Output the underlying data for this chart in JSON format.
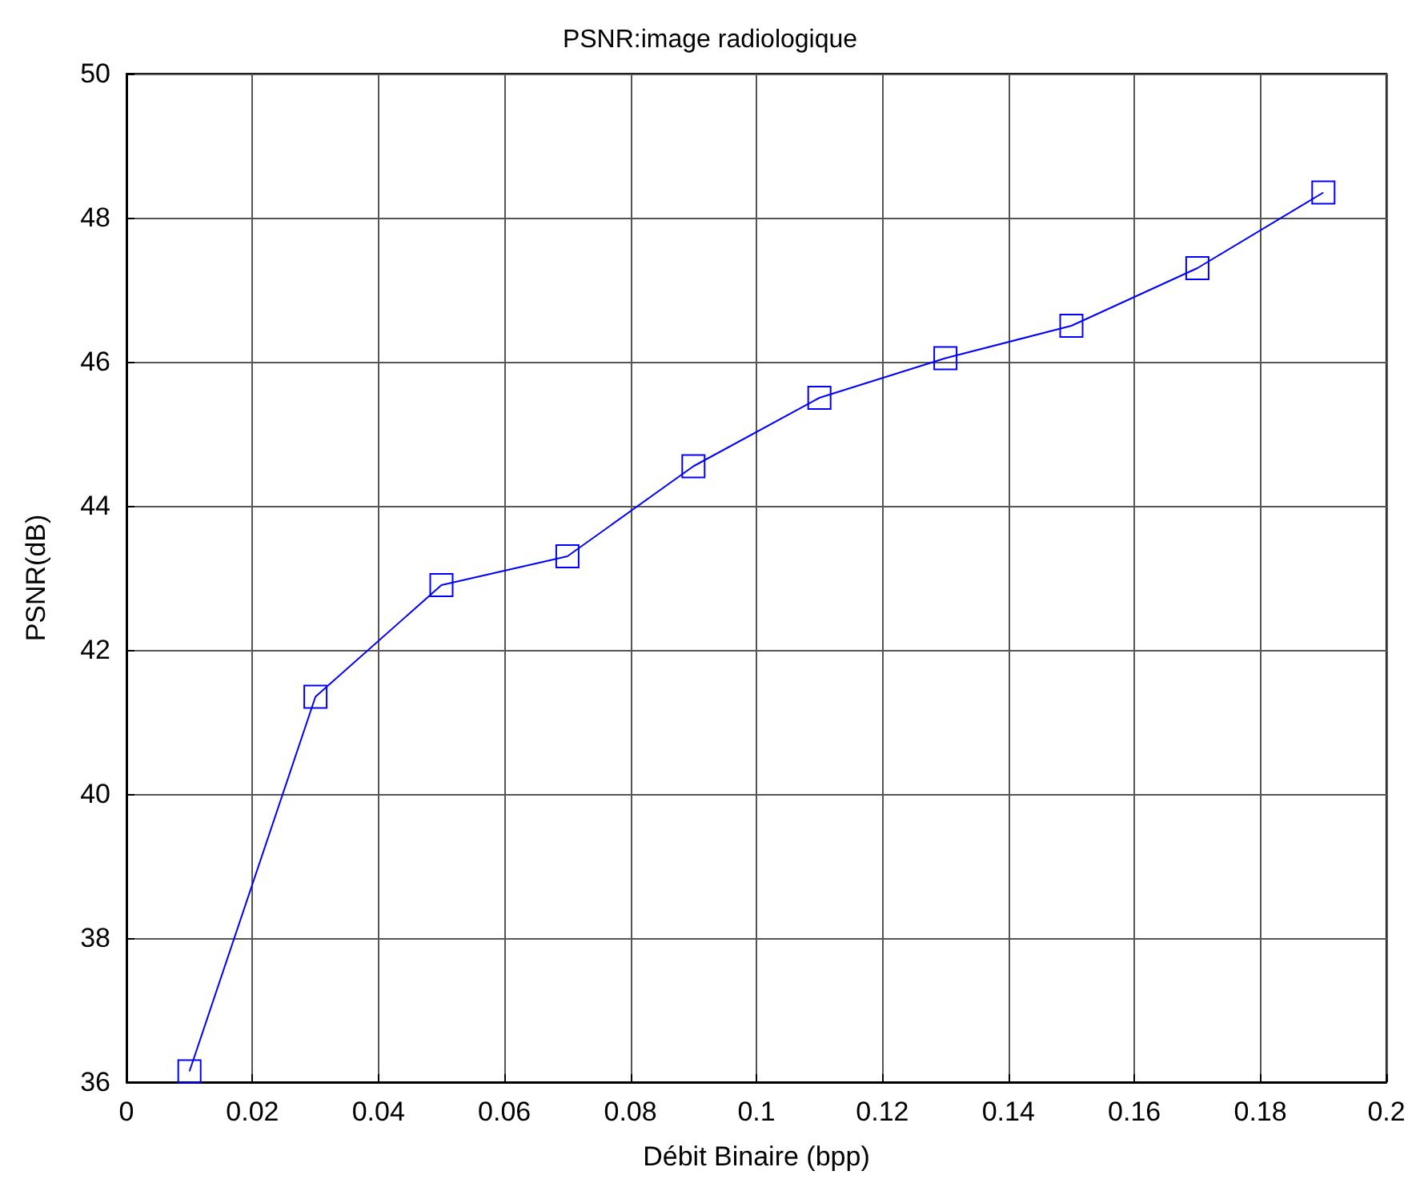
{
  "chart_data": {
    "type": "line",
    "title": "PSNR:image radiologique",
    "xlabel": "Débit Binaire (bpp)",
    "ylabel": "PSNR(dB)",
    "x": [
      0.01,
      0.03,
      0.05,
      0.07,
      0.09,
      0.11,
      0.13,
      0.15,
      0.17,
      0.19
    ],
    "series": [
      {
        "color": "#0000ff",
        "values": [
          36.15,
          41.35,
          42.9,
          43.3,
          44.55,
          45.5,
          46.05,
          46.5,
          47.3,
          48.35
        ]
      }
    ],
    "xlim": [
      0,
      0.2
    ],
    "xticks": [
      0,
      0.02,
      0.04,
      0.06,
      0.08,
      0.1,
      0.12,
      0.14,
      0.16,
      0.18,
      0.2
    ],
    "ylim": [
      36,
      50
    ],
    "yticks": [
      36,
      38,
      40,
      42,
      44,
      46,
      48,
      50
    ],
    "grid": true,
    "marker": "square",
    "line_style": "solid"
  }
}
